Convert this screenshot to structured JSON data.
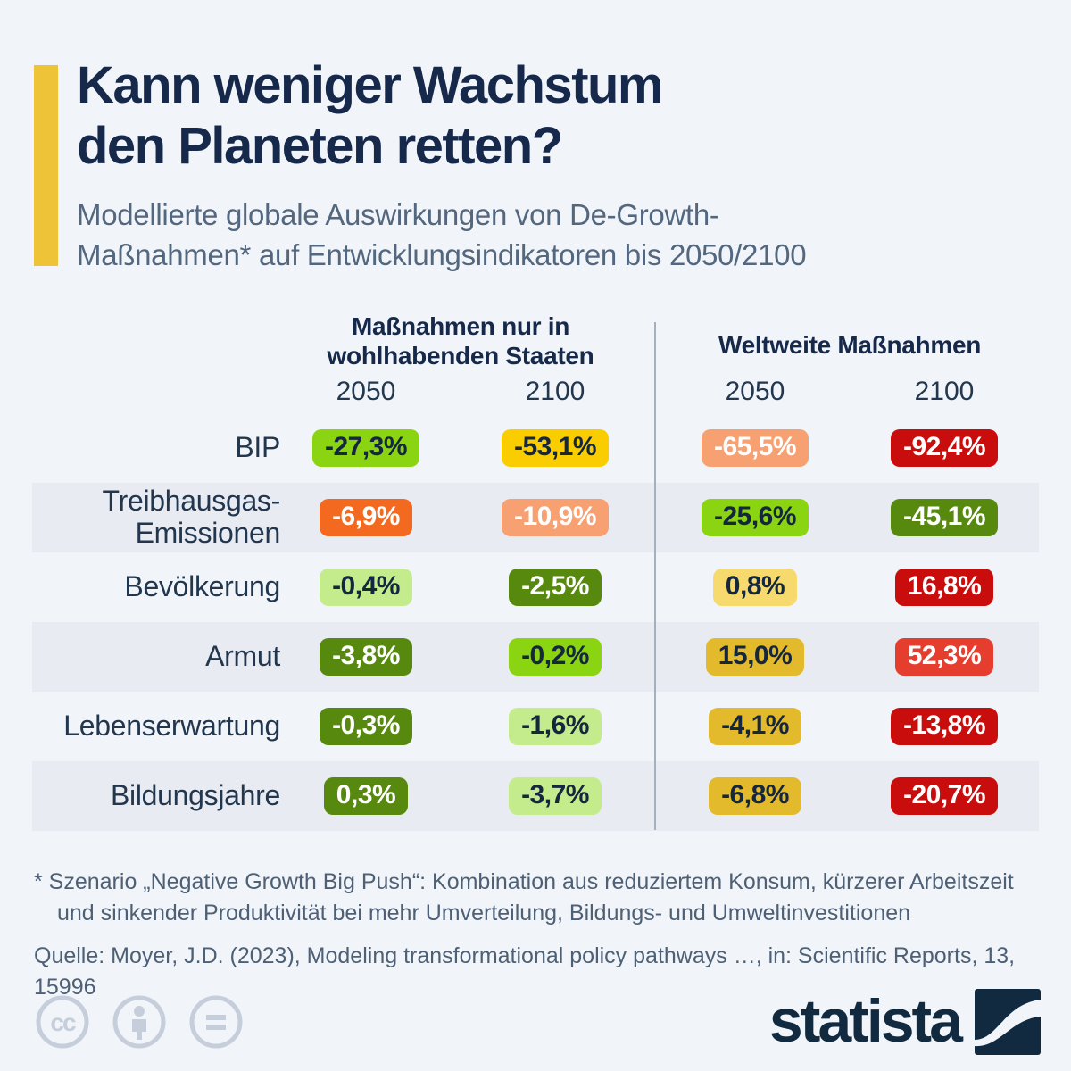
{
  "chart_data": {
    "type": "table",
    "title": "Kann weniger Wachstum den Planeten retten?",
    "subtitle": "Modellierte globale Auswirkungen von De-Growth-Maßnahmen* auf Entwicklungsindikatoren bis 2050/2100",
    "column_groups": [
      "Maßnahmen nur in wohlhabenden Staaten",
      "Weltweite Maßnahmen"
    ],
    "columns": [
      "2050 (wohlhabende Staaten)",
      "2100 (wohlhabende Staaten)",
      "2050 (weltweit)",
      "2100 (weltweit)"
    ],
    "rows": [
      "BIP",
      "Treibhausgas-Emissionen",
      "Bevölkerung",
      "Armut",
      "Lebenserwartung",
      "Bildungsjahre"
    ],
    "values_percent": [
      [
        -27.3,
        -53.1,
        -65.5,
        -92.4
      ],
      [
        -6.9,
        -10.9,
        -25.6,
        -45.1
      ],
      [
        -0.4,
        -2.5,
        0.8,
        16.8
      ],
      [
        -3.8,
        -0.2,
        15.0,
        52.3
      ],
      [
        -0.3,
        -1.6,
        -4.1,
        -13.8
      ],
      [
        0.3,
        -3.7,
        -6.8,
        -20.7
      ]
    ]
  },
  "header": {
    "title_line1": "Kann weniger Wachstum",
    "title_line2": "den Planeten retten?",
    "subtitle_line1": "Modellierte globale Auswirkungen von De-Growth-",
    "subtitle_line2": "Maßnahmen* auf Entwicklungsindikatoren bis 2050/2100"
  },
  "table": {
    "group_headers": [
      {
        "line1": "Maßnahmen nur in",
        "line2": "wohlhabenden Staaten"
      },
      {
        "line1": "Weltweite Maßnahmen"
      }
    ],
    "year_headers": [
      "2050",
      "2100",
      "2050",
      "2100"
    ],
    "rows": [
      {
        "label_lines": [
          "BIP"
        ],
        "cells": [
          {
            "value": "-27,3%",
            "color": "bright_green",
            "text": "dark"
          },
          {
            "value": "-53,1%",
            "color": "gold",
            "text": "dark"
          },
          {
            "value": "-65,5%",
            "color": "salmon",
            "text": "light"
          },
          {
            "value": "-92,4%",
            "color": "red",
            "text": "light"
          }
        ]
      },
      {
        "label_lines": [
          "Treibhausgas-",
          "Emissionen"
        ],
        "cells": [
          {
            "value": "-6,9%",
            "color": "orange",
            "text": "light"
          },
          {
            "value": "-10,9%",
            "color": "salmon",
            "text": "light"
          },
          {
            "value": "-25,6%",
            "color": "bright_green",
            "text": "dark"
          },
          {
            "value": "-45,1%",
            "color": "olive",
            "text": "light"
          }
        ]
      },
      {
        "label_lines": [
          "Bevölkerung"
        ],
        "cells": [
          {
            "value": "-0,4%",
            "color": "pale_green",
            "text": "dark"
          },
          {
            "value": "-2,5%",
            "color": "olive",
            "text": "light"
          },
          {
            "value": "0,8%",
            "color": "pale_yellow",
            "text": "dark"
          },
          {
            "value": "16,8%",
            "color": "red",
            "text": "light"
          }
        ]
      },
      {
        "label_lines": [
          "Armut"
        ],
        "cells": [
          {
            "value": "-3,8%",
            "color": "olive",
            "text": "light"
          },
          {
            "value": "-0,2%",
            "color": "bright_green",
            "text": "dark"
          },
          {
            "value": "15,0%",
            "color": "mustard",
            "text": "dark"
          },
          {
            "value": "52,3%",
            "color": "bright_red",
            "text": "light"
          }
        ]
      },
      {
        "label_lines": [
          "Lebenserwartung"
        ],
        "cells": [
          {
            "value": "-0,3%",
            "color": "olive",
            "text": "light"
          },
          {
            "value": "-1,6%",
            "color": "pale_green",
            "text": "dark"
          },
          {
            "value": "-4,1%",
            "color": "mustard",
            "text": "dark"
          },
          {
            "value": "-13,8%",
            "color": "red",
            "text": "light"
          }
        ]
      },
      {
        "label_lines": [
          "Bildungsjahre"
        ],
        "cells": [
          {
            "value": "0,3%",
            "color": "olive",
            "text": "light"
          },
          {
            "value": "-3,7%",
            "color": "pale_green",
            "text": "dark"
          },
          {
            "value": "-6,8%",
            "color": "mustard",
            "text": "dark"
          },
          {
            "value": "-20,7%",
            "color": "red",
            "text": "light"
          }
        ]
      }
    ]
  },
  "palette": {
    "bright_green": "#8AD412",
    "pale_green": "#C4EB8C",
    "olive": "#57890F",
    "gold": "#F9CD00",
    "pale_yellow": "#F7DA6E",
    "mustard": "#E2BA2C",
    "orange": "#F2691F",
    "salmon": "#F7A072",
    "red": "#C90D0D",
    "bright_red": "#E53E2E",
    "accent_yellow": "#EFC337",
    "navy": "#16294A",
    "background": "#F1F5F9",
    "row_band": "#E8EBF2"
  },
  "footnotes": {
    "line1": "* Szenario „Negative Growth Big Push“: Kombination aus reduziertem Konsum, kürzerer Arbeitszeit",
    "line2": "und sinkender Produktivität bei mehr Umverteilung, Bildungs- und Umweltinvestitionen",
    "source": "Quelle: Moyer, J.D. (2023), Modeling transformational policy pathways …, in: Scientific Reports, 13, 15996"
  },
  "footer": {
    "license_icons": [
      "cc-icon",
      "attribution-icon",
      "no-derivatives-icon"
    ],
    "brand": "statista"
  }
}
